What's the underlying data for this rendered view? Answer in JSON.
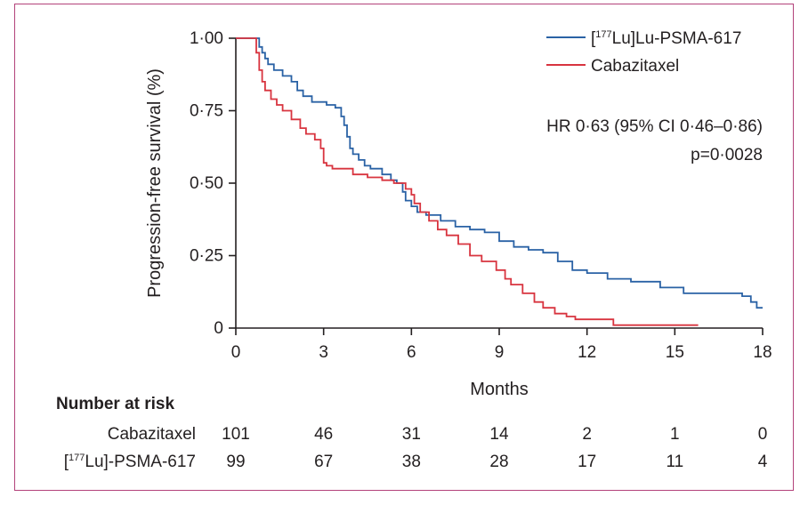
{
  "chart_data": {
    "type": "line",
    "ylabel": "Progression-free survival (%)",
    "xlabel": "Months",
    "xlim": [
      0,
      18
    ],
    "ylim": [
      0,
      1
    ],
    "x_ticks": [
      "0",
      "3",
      "6",
      "9",
      "12",
      "15",
      "18"
    ],
    "y_ticks": [
      "0",
      "0·25",
      "0·50",
      "0·75",
      "1·00"
    ],
    "grid": false,
    "legend_position": "top-right",
    "series": [
      {
        "name_parts": [
          "[",
          "177",
          "Lu]Lu-PSMA-617"
        ],
        "color": "#2a62a5",
        "points": [
          [
            0,
            1.0
          ],
          [
            0.7,
            1.0
          ],
          [
            0.8,
            0.97
          ],
          [
            0.9,
            0.95
          ],
          [
            1.0,
            0.93
          ],
          [
            1.1,
            0.91
          ],
          [
            1.3,
            0.89
          ],
          [
            1.6,
            0.87
          ],
          [
            1.9,
            0.85
          ],
          [
            2.1,
            0.82
          ],
          [
            2.3,
            0.8
          ],
          [
            2.6,
            0.78
          ],
          [
            2.9,
            0.78
          ],
          [
            3.1,
            0.77
          ],
          [
            3.4,
            0.76
          ],
          [
            3.6,
            0.73
          ],
          [
            3.7,
            0.7
          ],
          [
            3.8,
            0.66
          ],
          [
            3.9,
            0.62
          ],
          [
            4.0,
            0.6
          ],
          [
            4.2,
            0.58
          ],
          [
            4.4,
            0.56
          ],
          [
            4.6,
            0.55
          ],
          [
            5.0,
            0.53
          ],
          [
            5.3,
            0.51
          ],
          [
            5.5,
            0.5
          ],
          [
            5.7,
            0.47
          ],
          [
            5.8,
            0.44
          ],
          [
            6.0,
            0.42
          ],
          [
            6.2,
            0.4
          ],
          [
            6.5,
            0.39
          ],
          [
            7.0,
            0.37
          ],
          [
            7.5,
            0.35
          ],
          [
            8.0,
            0.34
          ],
          [
            8.5,
            0.33
          ],
          [
            9.0,
            0.3
          ],
          [
            9.5,
            0.28
          ],
          [
            10.0,
            0.27
          ],
          [
            10.5,
            0.26
          ],
          [
            11.0,
            0.23
          ],
          [
            11.5,
            0.2
          ],
          [
            12.0,
            0.19
          ],
          [
            12.7,
            0.17
          ],
          [
            13.5,
            0.16
          ],
          [
            14.5,
            0.14
          ],
          [
            15.3,
            0.12
          ],
          [
            16.0,
            0.12
          ],
          [
            17.3,
            0.11
          ],
          [
            17.6,
            0.09
          ],
          [
            17.8,
            0.07
          ],
          [
            18.0,
            0.07
          ]
        ]
      },
      {
        "name": "Cabazitaxel",
        "color": "#d8343f",
        "points": [
          [
            0,
            1.0
          ],
          [
            0.65,
            1.0
          ],
          [
            0.7,
            0.95
          ],
          [
            0.8,
            0.89
          ],
          [
            0.9,
            0.85
          ],
          [
            1.0,
            0.82
          ],
          [
            1.2,
            0.79
          ],
          [
            1.4,
            0.77
          ],
          [
            1.6,
            0.75
          ],
          [
            1.9,
            0.72
          ],
          [
            2.2,
            0.69
          ],
          [
            2.4,
            0.67
          ],
          [
            2.7,
            0.65
          ],
          [
            2.9,
            0.62
          ],
          [
            3.0,
            0.57
          ],
          [
            3.1,
            0.56
          ],
          [
            3.3,
            0.55
          ],
          [
            3.6,
            0.55
          ],
          [
            4.0,
            0.53
          ],
          [
            4.5,
            0.52
          ],
          [
            5.0,
            0.51
          ],
          [
            5.4,
            0.5
          ],
          [
            5.8,
            0.48
          ],
          [
            6.0,
            0.46
          ],
          [
            6.1,
            0.43
          ],
          [
            6.3,
            0.4
          ],
          [
            6.6,
            0.37
          ],
          [
            6.9,
            0.34
          ],
          [
            7.2,
            0.32
          ],
          [
            7.6,
            0.29
          ],
          [
            8.0,
            0.25
          ],
          [
            8.4,
            0.23
          ],
          [
            8.9,
            0.2
          ],
          [
            9.2,
            0.17
          ],
          [
            9.4,
            0.15
          ],
          [
            9.8,
            0.12
          ],
          [
            10.2,
            0.09
          ],
          [
            10.5,
            0.07
          ],
          [
            10.9,
            0.05
          ],
          [
            11.3,
            0.04
          ],
          [
            11.6,
            0.03
          ],
          [
            12.7,
            0.03
          ],
          [
            12.9,
            0.01
          ],
          [
            13.5,
            0.01
          ],
          [
            15.8,
            0.01
          ]
        ]
      }
    ],
    "annotation": {
      "hr_text": "HR 0·63 (95% CI 0·46–0·86)",
      "p_text": "p=0·0028"
    },
    "number_at_risk": {
      "title": "Number at risk",
      "rows": [
        {
          "label": "Cabazitaxel",
          "values": [
            "101",
            "46",
            "31",
            "14",
            "2",
            "1",
            "0"
          ]
        },
        {
          "label_parts": [
            "[",
            "177",
            "Lu]-PSMA-617"
          ],
          "values": [
            "99",
            "67",
            "38",
            "28",
            "17",
            "11",
            "4"
          ]
        }
      ]
    }
  },
  "colors": {
    "frame": "#b3427a",
    "axis": "#231f20"
  }
}
